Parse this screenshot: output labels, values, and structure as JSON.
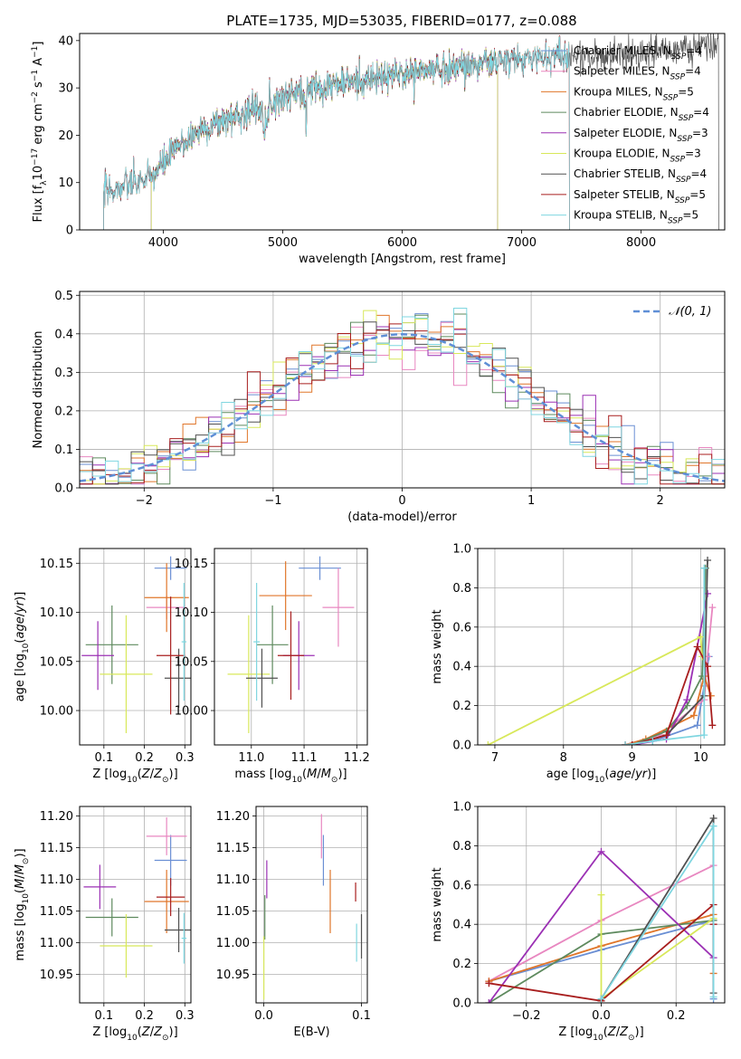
{
  "colors": {
    "Chabrier MILES": "#6a8fd4",
    "Salpeter MILES": "#e887c0",
    "Kroupa MILES": "#e0762a",
    "Chabrier ELODIE": "#5e8a5e",
    "Salpeter ELODIE": "#9b30b4",
    "Kroupa ELODIE": "#d8e85a",
    "Chabrier STELIB": "#505050",
    "Salpeter STELIB": "#a81e1e",
    "Kroupa STELIB": "#7fd6e0",
    "gauss": "#5f8fd6"
  },
  "chart_data": [
    {
      "type": "line",
      "title": "PLATE=1735, MJD=53035, FIBERID=0177, z=0.088",
      "xlabel": "wavelength [Angstrom, rest frame]",
      "ylabel": "Flux [f_λ 10^-17 erg cm^-2 s^-1 A^-1]",
      "xlim": [
        3300,
        8700
      ],
      "ylim": [
        0,
        41.5
      ],
      "xticks": [
        4000,
        5000,
        6000,
        7000,
        8000
      ],
      "yticks": [
        0,
        10,
        20,
        30,
        40
      ],
      "grid": false,
      "legend_position": "right",
      "legend": [
        "Chabrier MILES, N_SSP=4",
        "Salpeter MILES, N_SSP=4",
        "Kroupa MILES, N_SSP=5",
        "Chabrier ELODIE, N_SSP=4",
        "Salpeter ELODIE, N_SSP=3",
        "Kroupa ELODIE, N_SSP=3",
        "Chabrier STELIB, N_SSP=4",
        "Salpeter STELIB, N_SSP=5",
        "Kroupa STELIB, N_SSP=5"
      ],
      "continuum": {
        "x": [
          3500,
          3650,
          3900,
          4000,
          4100,
          4300,
          4600,
          5000,
          5200,
          5500,
          5800,
          6000,
          6300,
          6600,
          7000,
          7300,
          7600,
          8000,
          8300,
          8650
        ],
        "y": [
          8,
          9,
          11,
          14,
          17,
          21,
          24,
          28,
          30,
          31,
          32,
          33,
          34,
          35,
          36,
          37,
          36.5,
          37.5,
          38,
          39
        ]
      },
      "series_ranges": {
        "Chabrier MILES": [
          3500,
          7400
        ],
        "Salpeter MILES": [
          3500,
          7400
        ],
        "Kroupa MILES": [
          3500,
          7400
        ],
        "Chabrier ELODIE": [
          3900,
          6800
        ],
        "Salpeter ELODIE": [
          3900,
          6800
        ],
        "Kroupa ELODIE": [
          3900,
          6800
        ],
        "Chabrier STELIB": [
          3500,
          8650
        ],
        "Salpeter STELIB": [
          3500,
          7400
        ],
        "Kroupa STELIB": [
          3500,
          7400
        ]
      }
    },
    {
      "type": "step",
      "xlabel": "(data-model)/error",
      "ylabel": "Normed distribution",
      "xlim": [
        -2.5,
        2.5
      ],
      "ylim": [
        0,
        0.51
      ],
      "xticks": [
        -2,
        -1,
        0,
        1,
        2
      ],
      "yticks": [
        0.0,
        0.1,
        0.2,
        0.3,
        0.4,
        0.5
      ],
      "grid": true,
      "bin_width": 0.1,
      "legend_position": "top-right",
      "legend": [
        "N(0,1)"
      ]
    },
    {
      "type": "errorbar",
      "xlabel": "Z [log10(Z/Z⊙)]",
      "ylabel": "age [log10(age/yr)]",
      "xlim": [
        0.04,
        0.315
      ],
      "ylim": [
        9.965,
        10.165
      ],
      "xticks": [
        0.1,
        0.2,
        0.3
      ],
      "yticks": [
        10.0,
        10.05,
        10.1,
        10.15
      ],
      "points": [
        {
          "s": "Chabrier MILES",
          "x": 0.265,
          "y": 10.145,
          "xe": 0.04,
          "ye": 0.012
        },
        {
          "s": "Salpeter MILES",
          "x": 0.255,
          "y": 10.105,
          "xe": 0.05,
          "ye": 0.012
        },
        {
          "s": "Kroupa MILES",
          "x": 0.255,
          "y": 10.115,
          "xe": 0.055,
          "ye": 0.035
        },
        {
          "s": "Chabrier ELODIE",
          "x": 0.12,
          "y": 10.067,
          "xe": 0.065,
          "ye": 0.04
        },
        {
          "s": "Salpeter ELODIE",
          "x": 0.085,
          "y": 10.056,
          "xe": 0.04,
          "ye": 0.035
        },
        {
          "s": "Kroupa ELODIE",
          "x": 0.155,
          "y": 10.037,
          "xe": 0.065,
          "ye": 0.06
        },
        {
          "s": "Chabrier STELIB",
          "x": 0.285,
          "y": 10.033,
          "xe": 0.035,
          "ye": 0.03
        },
        {
          "s": "Salpeter STELIB",
          "x": 0.265,
          "y": 10.056,
          "xe": 0.035,
          "ye": 0.06
        },
        {
          "s": "Kroupa STELIB",
          "x": 0.298,
          "y": 10.07,
          "xe": 0.006,
          "ye": 0.06
        }
      ]
    },
    {
      "type": "errorbar",
      "xlabel": "mass [log10(M/M⊙)]",
      "ylabel": "",
      "xlim": [
        10.93,
        11.22
      ],
      "ylim": [
        9.965,
        10.165
      ],
      "xticks": [
        11.0,
        11.1,
        11.2
      ],
      "yticks": [
        10.0,
        10.05,
        10.1,
        10.15
      ],
      "points": [
        {
          "s": "Chabrier MILES",
          "x": 11.13,
          "y": 10.145,
          "xe": 0.04,
          "ye": 0.012
        },
        {
          "s": "Salpeter MILES",
          "x": 11.165,
          "y": 10.105,
          "xe": 0.03,
          "ye": 0.04
        },
        {
          "s": "Kroupa MILES",
          "x": 11.065,
          "y": 10.117,
          "xe": 0.05,
          "ye": 0.035
        },
        {
          "s": "Chabrier ELODIE",
          "x": 11.04,
          "y": 10.067,
          "xe": 0.03,
          "ye": 0.04
        },
        {
          "s": "Salpeter ELODIE",
          "x": 11.09,
          "y": 10.056,
          "xe": 0.03,
          "ye": 0.035
        },
        {
          "s": "Kroupa ELODIE",
          "x": 10.995,
          "y": 10.037,
          "xe": 0.04,
          "ye": 0.06
        },
        {
          "s": "Chabrier STELIB",
          "x": 11.02,
          "y": 10.033,
          "xe": 0.03,
          "ye": 0.03
        },
        {
          "s": "Salpeter STELIB",
          "x": 11.075,
          "y": 10.056,
          "xe": 0.025,
          "ye": 0.045
        },
        {
          "s": "Kroupa STELIB",
          "x": 11.01,
          "y": 10.07,
          "xe": 0.006,
          "ye": 0.06
        }
      ]
    },
    {
      "type": "line",
      "xlabel": "age [log10(age/yr)]",
      "ylabel": "mass weight",
      "xlim": [
        6.75,
        10.35
      ],
      "ylim": [
        0,
        1.0
      ],
      "xticks": [
        7,
        8,
        9,
        10
      ],
      "yticks": [
        0.0,
        0.2,
        0.4,
        0.6,
        0.8,
        1.0
      ],
      "series": [
        {
          "s": "Chabrier MILES",
          "x": [
            8.9,
            9.3,
            9.95,
            10.05,
            10.12
          ],
          "y": [
            0.0,
            0.02,
            0.1,
            0.3,
            0.45
          ]
        },
        {
          "s": "Salpeter MILES",
          "x": [
            8.9,
            9.4,
            10.05,
            10.1,
            10.17
          ],
          "y": [
            0.0,
            0.05,
            0.23,
            0.45,
            0.7
          ]
        },
        {
          "s": "Kroupa MILES",
          "x": [
            8.9,
            9.2,
            9.9,
            10.05,
            10.15
          ],
          "y": [
            0.0,
            0.03,
            0.15,
            0.35,
            0.25
          ]
        },
        {
          "s": "Chabrier ELODIE",
          "x": [
            9.0,
            9.5,
            9.8,
            10.02,
            10.07
          ],
          "y": [
            0.0,
            0.07,
            0.2,
            0.35,
            0.9
          ]
        },
        {
          "s": "Salpeter ELODIE",
          "x": [
            9.0,
            9.5,
            9.8,
            10.1
          ],
          "y": [
            0.0,
            0.03,
            0.23,
            0.77
          ]
        },
        {
          "s": "Kroupa ELODIE",
          "x": [
            6.9,
            10.0,
            10.02
          ],
          "y": [
            0.0,
            0.55,
            0.45
          ]
        },
        {
          "s": "Chabrier STELIB",
          "x": [
            9.0,
            9.5,
            10.05,
            10.1
          ],
          "y": [
            0.0,
            0.05,
            0.25,
            0.94
          ]
        },
        {
          "s": "Salpeter STELIB",
          "x": [
            9.0,
            9.5,
            9.95,
            10.1,
            10.17
          ],
          "y": [
            0.0,
            0.05,
            0.5,
            0.4,
            0.1
          ]
        },
        {
          "s": "Kroupa STELIB",
          "x": [
            8.9,
            9.3,
            10.05,
            10.05
          ],
          "y": [
            0.0,
            0.02,
            0.05,
            0.9
          ]
        }
      ]
    },
    {
      "type": "errorbar",
      "xlabel": "Z [log10(Z/Z⊙)]",
      "ylabel": "mass [log10(M/M⊙)]",
      "xlim": [
        0.04,
        0.315
      ],
      "ylim": [
        10.905,
        11.215
      ],
      "xticks": [
        0.1,
        0.2,
        0.3
      ],
      "yticks": [
        10.95,
        11.0,
        11.05,
        11.1,
        11.15,
        11.2
      ],
      "points": [
        {
          "s": "Chabrier MILES",
          "x": 0.265,
          "y": 11.13,
          "xe": 0.04,
          "ye": 0.04
        },
        {
          "s": "Salpeter MILES",
          "x": 0.255,
          "y": 11.168,
          "xe": 0.05,
          "ye": 0.03
        },
        {
          "s": "Kroupa MILES",
          "x": 0.255,
          "y": 11.065,
          "xe": 0.055,
          "ye": 0.05
        },
        {
          "s": "Chabrier ELODIE",
          "x": 0.12,
          "y": 11.04,
          "xe": 0.065,
          "ye": 0.03
        },
        {
          "s": "Salpeter ELODIE",
          "x": 0.09,
          "y": 11.088,
          "xe": 0.04,
          "ye": 0.035
        },
        {
          "s": "Kroupa ELODIE",
          "x": 0.155,
          "y": 10.995,
          "xe": 0.065,
          "ye": 0.05
        },
        {
          "s": "Chabrier STELIB",
          "x": 0.285,
          "y": 11.02,
          "xe": 0.035,
          "ye": 0.035
        },
        {
          "s": "Salpeter STELIB",
          "x": 0.265,
          "y": 11.072,
          "xe": 0.035,
          "ye": 0.03
        },
        {
          "s": "Kroupa STELIB",
          "x": 0.298,
          "y": 11.007,
          "xe": 0.006,
          "ye": 0.04
        }
      ]
    },
    {
      "type": "errorbar",
      "xlabel": "E(B-V)",
      "ylabel": "",
      "xlim": [
        -0.008,
        0.106
      ],
      "ylim": [
        10.905,
        11.215
      ],
      "xticks": [
        0.0,
        0.1
      ],
      "yticks": [
        10.95,
        11.0,
        11.05,
        11.1,
        11.15,
        11.2
      ],
      "points": [
        {
          "s": "Chabrier MILES",
          "x": 0.061,
          "y": 11.13,
          "xe": 0,
          "ye": 0.04
        },
        {
          "s": "Salpeter MILES",
          "x": 0.059,
          "y": 11.168,
          "xe": 0,
          "ye": 0.035
        },
        {
          "s": "Kroupa MILES",
          "x": 0.068,
          "y": 11.065,
          "xe": 0,
          "ye": 0.05
        },
        {
          "s": "Chabrier ELODIE",
          "x": 0.001,
          "y": 11.04,
          "xe": 0,
          "ye": 0.035
        },
        {
          "s": "Salpeter ELODIE",
          "x": 0.003,
          "y": 11.1,
          "xe": 0,
          "ye": 0.03
        },
        {
          "s": "Kroupa ELODIE",
          "x": 0.0,
          "y": 10.96,
          "xe": 0,
          "ye": 0.05
        },
        {
          "s": "Chabrier STELIB",
          "x": 0.1,
          "y": 11.01,
          "xe": 0,
          "ye": 0.035
        },
        {
          "s": "Salpeter STELIB",
          "x": 0.094,
          "y": 11.08,
          "xe": 0,
          "ye": 0.015
        },
        {
          "s": "Kroupa STELIB",
          "x": 0.095,
          "y": 11.0,
          "xe": 0,
          "ye": 0.03
        }
      ]
    },
    {
      "type": "line",
      "xlabel": "Z [log10(Z/Z⊙)]",
      "ylabel": "mass weight",
      "xlim": [
        -0.33,
        0.33
      ],
      "ylim": [
        0,
        1.0
      ],
      "xticks": [
        -0.2,
        0.0,
        0.2
      ],
      "yticks": [
        0.0,
        0.2,
        0.4,
        0.6,
        0.8,
        1.0
      ],
      "series": [
        {
          "s": "Chabrier MILES",
          "x": [
            -0.3,
            0.0,
            0.3,
            0.3
          ],
          "y": [
            0.11,
            0.27,
            0.42,
            0.02
          ]
        },
        {
          "s": "Salpeter MILES",
          "x": [
            -0.3,
            0.0,
            0.3
          ],
          "y": [
            0.11,
            0.42,
            0.7
          ]
        },
        {
          "s": "Kroupa MILES",
          "x": [
            -0.3,
            0.0,
            0.3,
            0.3
          ],
          "y": [
            0.11,
            0.29,
            0.45,
            0.15
          ]
        },
        {
          "s": "Chabrier ELODIE",
          "x": [
            -0.3,
            0.0,
            0.3
          ],
          "y": [
            0.0,
            0.35,
            0.42
          ]
        },
        {
          "s": "Salpeter ELODIE",
          "x": [
            -0.3,
            0.0,
            0.3
          ],
          "y": [
            0.0,
            0.77,
            0.23
          ]
        },
        {
          "s": "Kroupa ELODIE",
          "x": [
            0.0,
            0.0,
            0.3
          ],
          "y": [
            0.55,
            0.02,
            0.43
          ]
        },
        {
          "s": "Chabrier STELIB",
          "x": [
            0.0,
            0.3,
            0.3
          ],
          "y": [
            0.02,
            0.94,
            0.05
          ]
        },
        {
          "s": "Salpeter STELIB",
          "x": [
            -0.3,
            0.0,
            0.3,
            0.3
          ],
          "y": [
            0.1,
            0.01,
            0.5,
            0.4
          ]
        },
        {
          "s": "Kroupa STELIB",
          "x": [
            0.0,
            0.3,
            0.3
          ],
          "y": [
            0.02,
            0.9,
            0.03
          ]
        }
      ]
    }
  ]
}
